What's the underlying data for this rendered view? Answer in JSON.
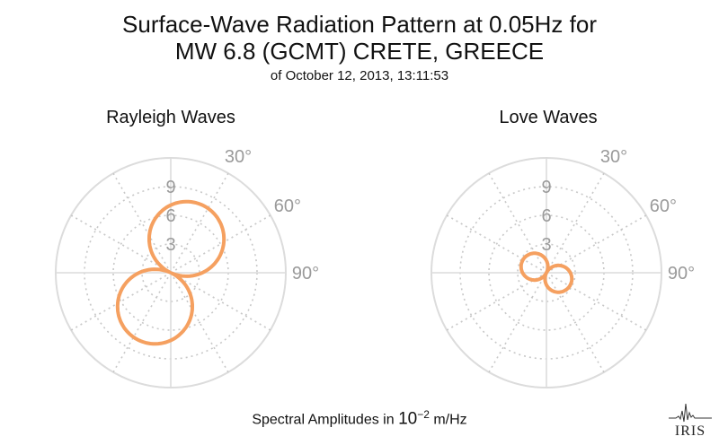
{
  "title_line1": "Surface-Wave Radiation Pattern at 0.05Hz for",
  "title_line2": "MW 6.8 (GCMT) CRETE, GREECE",
  "subtitle": "of October 12, 2013, 13:11:53",
  "caption": {
    "prefix": "Spectral Amplitudes in ",
    "base": "10",
    "exponent": "−2",
    "unit": " m/Hz"
  },
  "logo_text": "IRIS",
  "colors": {
    "pattern": "#f5a060",
    "grid_solid": "#dcdcdc",
    "grid_dotted": "#c8c8c8",
    "tick_label": "#9a9a9a"
  },
  "chart_data": [
    {
      "type": "polar",
      "title": "Rayleigh Waves",
      "radial_ticks": [
        "3",
        "6",
        "9"
      ],
      "radial_tick_values": [
        3,
        6,
        9
      ],
      "rmax": 12,
      "angle_ticks": [
        "30°",
        "60°",
        "90°"
      ],
      "angle_tick_values": [
        30,
        60,
        90
      ],
      "pattern": {
        "shape": "two-lobe",
        "lobe_azimuths_deg": [
          25,
          205
        ],
        "peak_amplitude": 7.8
      },
      "grid": true
    },
    {
      "type": "polar",
      "title": "Love Waves",
      "radial_ticks": [
        "3",
        "6",
        "9"
      ],
      "radial_tick_values": [
        3,
        6,
        9
      ],
      "rmax": 12,
      "angle_ticks": [
        "30°",
        "60°",
        "90°"
      ],
      "angle_tick_values": [
        30,
        60,
        90
      ],
      "pattern": {
        "shape": "two-lobe",
        "lobe_azimuths_deg": [
          297,
          117
        ],
        "peak_amplitude": 2.8
      },
      "grid": true
    }
  ]
}
